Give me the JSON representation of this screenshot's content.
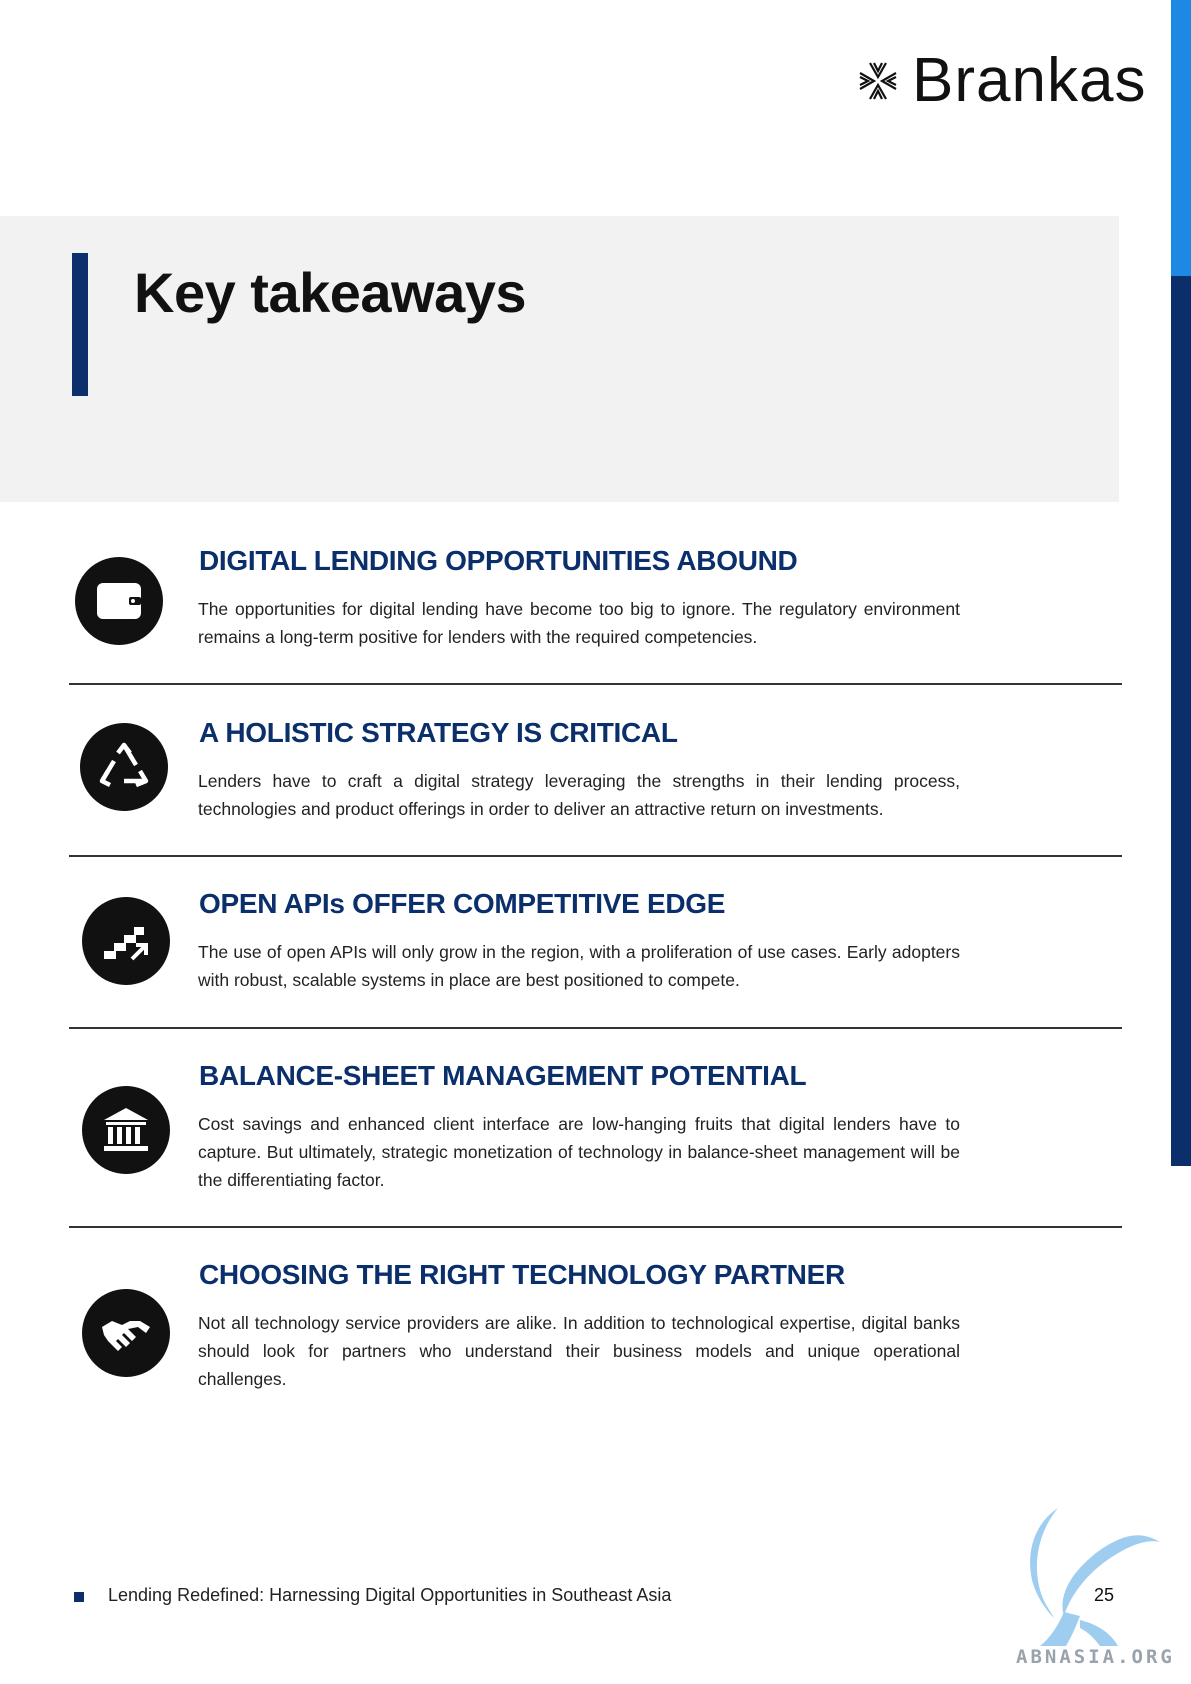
{
  "header": {
    "brand_name": "Brankas",
    "logo_icon": "brankas-star-icon"
  },
  "hero": {
    "title": "Key takeaways"
  },
  "takeaways": [
    {
      "icon": "wallet-icon",
      "heading": "DIGITAL LENDING OPPORTUNITIES ABOUND",
      "body": "The opportunities for digital lending have become too big to ignore. The regulatory environment remains a long-term positive for lenders with the required competencies."
    },
    {
      "icon": "recycle-icon",
      "heading": "A HOLISTIC STRATEGY IS CRITICAL",
      "body": "Lenders have to craft a digital strategy leveraging the strengths in their lending process, technologies and product offerings in order to deliver an attractive return on investments."
    },
    {
      "icon": "stairs-up-icon",
      "heading": "OPEN APIs OFFER COMPETITIVE EDGE",
      "body": "The use of open APIs will only grow in the region, with a proliferation of use cases. Early adopters with robust, scalable systems in place are best positioned to compete."
    },
    {
      "icon": "bank-icon",
      "heading": "BALANCE-SHEET MANAGEMENT POTENTIAL",
      "body": "Cost savings and enhanced client interface are low-hanging fruits that digital lenders have to capture. But ultimately, strategic monetization of technology in balance-sheet management will be the differentiating factor."
    },
    {
      "icon": "handshake-icon",
      "heading": "CHOOSING THE RIGHT TECHNOLOGY PARTNER",
      "body": "Not all technology service providers are alike. In addition to technological expertise, digital banks should look for partners who understand their business models and unique operational challenges."
    }
  ],
  "footer": {
    "text": "Lending Redefined: Harnessing Digital Opportunities in Southeast Asia",
    "page_number": "25"
  },
  "watermark": {
    "text": "ABNASIA.ORG"
  },
  "colors": {
    "accent_navy": "#0b2f6b",
    "accent_blue": "#1e88e5",
    "hero_bg": "#f2f2f2"
  }
}
